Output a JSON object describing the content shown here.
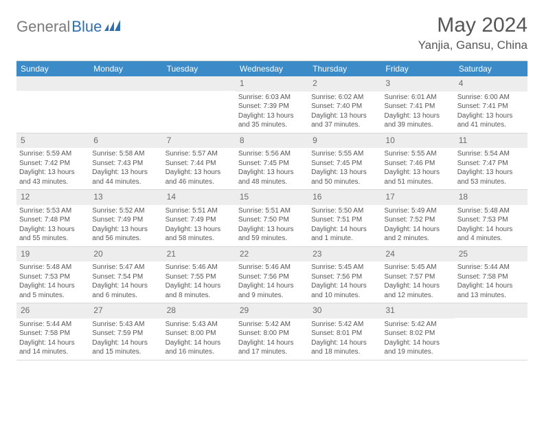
{
  "logo": {
    "part1": "General",
    "part2": "Blue"
  },
  "title": "May 2024",
  "location": "Yanjia, Gansu, China",
  "colors": {
    "header_bg": "#3b8bc9",
    "header_text": "#ffffff",
    "daynum_bg": "#ededed",
    "daynum_text": "#6a6a6a",
    "body_text": "#555555",
    "logo_gray": "#7a7a7a",
    "logo_blue": "#2f6fb0"
  },
  "dayNames": [
    "Sunday",
    "Monday",
    "Tuesday",
    "Wednesday",
    "Thursday",
    "Friday",
    "Saturday"
  ],
  "weeks": [
    [
      {
        "n": "",
        "sunrise": "",
        "sunset": "",
        "daylight": ""
      },
      {
        "n": "",
        "sunrise": "",
        "sunset": "",
        "daylight": ""
      },
      {
        "n": "",
        "sunrise": "",
        "sunset": "",
        "daylight": ""
      },
      {
        "n": "1",
        "sunrise": "6:03 AM",
        "sunset": "7:39 PM",
        "daylight": "13 hours and 35 minutes."
      },
      {
        "n": "2",
        "sunrise": "6:02 AM",
        "sunset": "7:40 PM",
        "daylight": "13 hours and 37 minutes."
      },
      {
        "n": "3",
        "sunrise": "6:01 AM",
        "sunset": "7:41 PM",
        "daylight": "13 hours and 39 minutes."
      },
      {
        "n": "4",
        "sunrise": "6:00 AM",
        "sunset": "7:41 PM",
        "daylight": "13 hours and 41 minutes."
      }
    ],
    [
      {
        "n": "5",
        "sunrise": "5:59 AM",
        "sunset": "7:42 PM",
        "daylight": "13 hours and 43 minutes."
      },
      {
        "n": "6",
        "sunrise": "5:58 AM",
        "sunset": "7:43 PM",
        "daylight": "13 hours and 44 minutes."
      },
      {
        "n": "7",
        "sunrise": "5:57 AM",
        "sunset": "7:44 PM",
        "daylight": "13 hours and 46 minutes."
      },
      {
        "n": "8",
        "sunrise": "5:56 AM",
        "sunset": "7:45 PM",
        "daylight": "13 hours and 48 minutes."
      },
      {
        "n": "9",
        "sunrise": "5:55 AM",
        "sunset": "7:45 PM",
        "daylight": "13 hours and 50 minutes."
      },
      {
        "n": "10",
        "sunrise": "5:55 AM",
        "sunset": "7:46 PM",
        "daylight": "13 hours and 51 minutes."
      },
      {
        "n": "11",
        "sunrise": "5:54 AM",
        "sunset": "7:47 PM",
        "daylight": "13 hours and 53 minutes."
      }
    ],
    [
      {
        "n": "12",
        "sunrise": "5:53 AM",
        "sunset": "7:48 PM",
        "daylight": "13 hours and 55 minutes."
      },
      {
        "n": "13",
        "sunrise": "5:52 AM",
        "sunset": "7:49 PM",
        "daylight": "13 hours and 56 minutes."
      },
      {
        "n": "14",
        "sunrise": "5:51 AM",
        "sunset": "7:49 PM",
        "daylight": "13 hours and 58 minutes."
      },
      {
        "n": "15",
        "sunrise": "5:51 AM",
        "sunset": "7:50 PM",
        "daylight": "13 hours and 59 minutes."
      },
      {
        "n": "16",
        "sunrise": "5:50 AM",
        "sunset": "7:51 PM",
        "daylight": "14 hours and 1 minute."
      },
      {
        "n": "17",
        "sunrise": "5:49 AM",
        "sunset": "7:52 PM",
        "daylight": "14 hours and 2 minutes."
      },
      {
        "n": "18",
        "sunrise": "5:48 AM",
        "sunset": "7:53 PM",
        "daylight": "14 hours and 4 minutes."
      }
    ],
    [
      {
        "n": "19",
        "sunrise": "5:48 AM",
        "sunset": "7:53 PM",
        "daylight": "14 hours and 5 minutes."
      },
      {
        "n": "20",
        "sunrise": "5:47 AM",
        "sunset": "7:54 PM",
        "daylight": "14 hours and 6 minutes."
      },
      {
        "n": "21",
        "sunrise": "5:46 AM",
        "sunset": "7:55 PM",
        "daylight": "14 hours and 8 minutes."
      },
      {
        "n": "22",
        "sunrise": "5:46 AM",
        "sunset": "7:56 PM",
        "daylight": "14 hours and 9 minutes."
      },
      {
        "n": "23",
        "sunrise": "5:45 AM",
        "sunset": "7:56 PM",
        "daylight": "14 hours and 10 minutes."
      },
      {
        "n": "24",
        "sunrise": "5:45 AM",
        "sunset": "7:57 PM",
        "daylight": "14 hours and 12 minutes."
      },
      {
        "n": "25",
        "sunrise": "5:44 AM",
        "sunset": "7:58 PM",
        "daylight": "14 hours and 13 minutes."
      }
    ],
    [
      {
        "n": "26",
        "sunrise": "5:44 AM",
        "sunset": "7:58 PM",
        "daylight": "14 hours and 14 minutes."
      },
      {
        "n": "27",
        "sunrise": "5:43 AM",
        "sunset": "7:59 PM",
        "daylight": "14 hours and 15 minutes."
      },
      {
        "n": "28",
        "sunrise": "5:43 AM",
        "sunset": "8:00 PM",
        "daylight": "14 hours and 16 minutes."
      },
      {
        "n": "29",
        "sunrise": "5:42 AM",
        "sunset": "8:00 PM",
        "daylight": "14 hours and 17 minutes."
      },
      {
        "n": "30",
        "sunrise": "5:42 AM",
        "sunset": "8:01 PM",
        "daylight": "14 hours and 18 minutes."
      },
      {
        "n": "31",
        "sunrise": "5:42 AM",
        "sunset": "8:02 PM",
        "daylight": "14 hours and 19 minutes."
      },
      {
        "n": "",
        "sunrise": "",
        "sunset": "",
        "daylight": ""
      }
    ]
  ]
}
